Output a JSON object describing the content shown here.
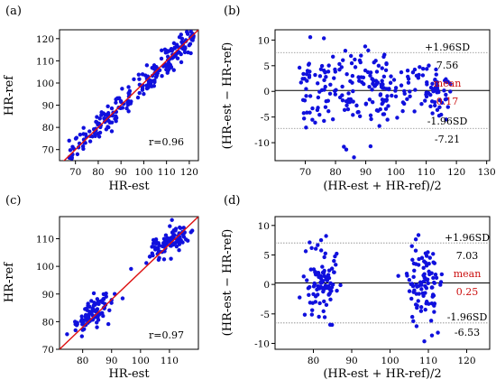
{
  "colors": {
    "points": "#1010dd",
    "fit_line": "#dd1111",
    "mean_text": "#cc1111",
    "sd_line": "#888888"
  },
  "chart_data": [
    {
      "panel": "(a)",
      "type": "scatter",
      "xlabel": "HR-est",
      "ylabel": "HR-ref",
      "xlim": [
        63,
        124
      ],
      "ylim": [
        65,
        124
      ],
      "xticks": [
        70,
        80,
        90,
        100,
        110,
        120
      ],
      "yticks": [
        70,
        80,
        90,
        100,
        110,
        120
      ],
      "annotation": "r=0.96",
      "line": {
        "x": [
          63,
          124
        ],
        "y": [
          63,
          124
        ]
      },
      "cluster_params": [
        {
          "n": 210,
          "x_min": 67,
          "x_max": 122,
          "noise": 3.2
        },
        {
          "n": 20,
          "x_min": 96,
          "x_max": 120,
          "noise": 2.5
        }
      ]
    },
    {
      "panel": "(b)",
      "type": "scatter",
      "xlabel": "(HR-est + HR-ref)/2",
      "ylabel": "(HR-est − HR-ref)",
      "xlim": [
        60,
        131
      ],
      "ylim": [
        -13.5,
        12
      ],
      "xticks": [
        70,
        80,
        90,
        100,
        110,
        120,
        130
      ],
      "yticks": [
        -10,
        -5,
        0,
        5,
        10
      ],
      "mean": 0.17,
      "upper_loa": 7.56,
      "lower_loa": -7.21,
      "labels": {
        "upper": "+1.96SD",
        "mean": "mean",
        "lower": "-1.96SD",
        "upper_val": "7.56",
        "mean_val": "0.17",
        "lower_val": "-7.21"
      },
      "cluster_params": [
        {
          "n": 150,
          "x_min": 68,
          "x_max": 98,
          "y_sd": 4.5
        },
        {
          "n": 90,
          "x_min": 92,
          "x_max": 118,
          "y_sd": 2.2
        },
        {
          "n": 20,
          "x_min": 110,
          "x_max": 118,
          "y_sd": 4.0
        }
      ]
    },
    {
      "panel": "(c)",
      "type": "scatter",
      "xlabel": "HR-est",
      "ylabel": "HR-ref",
      "xlim": [
        72,
        120
      ],
      "ylim": [
        70,
        118
      ],
      "xticks": [
        80,
        90,
        100,
        110
      ],
      "yticks": [
        70,
        80,
        90,
        100,
        110
      ],
      "annotation": "r=0.97",
      "line": {
        "x": [
          72,
          120
        ],
        "y": [
          70,
          118
        ]
      },
      "cluster_params": [
        {
          "n": 95,
          "x_center": 83,
          "y_center": 83,
          "x_sd": 3.3,
          "y_sd": 2.8
        },
        {
          "n": 95,
          "x_center": 110,
          "y_center": 109,
          "x_sd": 3.3,
          "y_sd": 2.3
        }
      ]
    },
    {
      "panel": "(d)",
      "type": "scatter",
      "xlabel": "(HR-est + HR-ref)/2",
      "ylabel": "(HR-est − HR-ref)",
      "xlim": [
        70,
        126
      ],
      "ylim": [
        -11,
        11.5
      ],
      "xticks": [
        80,
        90,
        100,
        110,
        120
      ],
      "yticks": [
        -10,
        -5,
        0,
        5,
        10
      ],
      "mean": 0.25,
      "upper_loa": 7.03,
      "lower_loa": -6.53,
      "labels": {
        "upper": "+1.96SD",
        "mean": "mean",
        "lower": "-1.96SD",
        "upper_val": "7.03",
        "mean_val": "0.25",
        "lower_val": "-6.53"
      },
      "cluster_params": [
        {
          "n": 95,
          "x_center": 82,
          "x_sd": 2.5,
          "y_sd": 3.4
        },
        {
          "n": 95,
          "x_center": 109,
          "x_sd": 2.4,
          "y_sd": 3.4
        }
      ]
    }
  ]
}
